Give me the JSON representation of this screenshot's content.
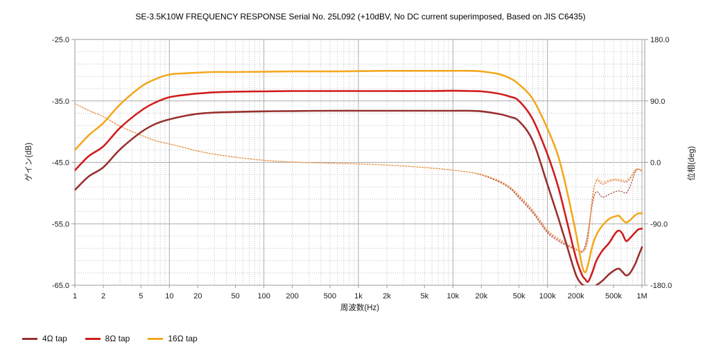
{
  "title": "SE-3.5K10W FREQUENCY RESPONSE Serial No. 25L092 (+10dBV,  No DC current superimposed,  Based on JIS C6435)",
  "axes": {
    "x": {
      "label": "周波数(Hz)",
      "scale": "log",
      "min": 1,
      "max": 1000000,
      "ticks": [
        {
          "t": "1",
          "v": 1
        },
        {
          "t": "2",
          "v": 2
        },
        {
          "t": "5",
          "v": 5
        },
        {
          "t": "10",
          "v": 10
        },
        {
          "t": "20",
          "v": 20
        },
        {
          "t": "50",
          "v": 50
        },
        {
          "t": "100",
          "v": 100
        },
        {
          "t": "200",
          "v": 200
        },
        {
          "t": "500",
          "v": 500
        },
        {
          "t": "1k",
          "v": 1000
        },
        {
          "t": "2k",
          "v": 2000
        },
        {
          "t": "5k",
          "v": 5000
        },
        {
          "t": "10k",
          "v": 10000
        },
        {
          "t": "20k",
          "v": 20000
        },
        {
          "t": "50k",
          "v": 50000
        },
        {
          "t": "100k",
          "v": 100000
        },
        {
          "t": "200k",
          "v": 200000
        },
        {
          "t": "500k",
          "v": 500000
        },
        {
          "t": "1M",
          "v": 1000000
        }
      ]
    },
    "y_left": {
      "label": "ゲイン(dB)",
      "min": -65,
      "max": -25,
      "minor_step": 2,
      "ticks": [
        {
          "t": "-25.0",
          "v": -25
        },
        {
          "t": "-35.0",
          "v": -35
        },
        {
          "t": "-45.0",
          "v": -45
        },
        {
          "t": "-55.0",
          "v": -55
        },
        {
          "t": "-65.0",
          "v": -65
        }
      ]
    },
    "y_right": {
      "label": "位相(deg)",
      "min": -180,
      "max": 180,
      "ticks": [
        {
          "t": "180.0",
          "v": 180
        },
        {
          "t": "90.0",
          "v": 90
        },
        {
          "t": "0.0",
          "v": 0
        },
        {
          "t": "-90.0",
          "v": -90
        },
        {
          "t": "-180.0",
          "v": -180
        }
      ]
    }
  },
  "legend": [
    {
      "label": "4Ω tap",
      "color": "#97312e"
    },
    {
      "label": "8Ω tap",
      "color": "#d01c1c"
    },
    {
      "label": "16Ω tap",
      "color": "#f3a81f"
    }
  ],
  "colors": {
    "grid_major": "#ababab",
    "grid_minor": "#c0c0c0",
    "border": "#9a9a9a",
    "text": "#1a1a1a"
  },
  "chart_data": {
    "type": "line",
    "title": "SE-3.5K10W FREQUENCY RESPONSE Serial No. 25L092",
    "xlabel": "周波数(Hz)",
    "ylabel_left": "ゲイン(dB)",
    "ylabel_right": "位相(deg)",
    "xscale": "log",
    "xlim": [
      1,
      1000000
    ],
    "ylim_left": [
      -65,
      -25
    ],
    "ylim_right": [
      -180,
      180
    ],
    "grid": true,
    "legend_position": "bottom-left",
    "x": [
      1,
      1.4,
      2,
      3,
      5,
      7,
      10,
      15,
      20,
      30,
      50,
      100,
      200,
      500,
      1000,
      2000,
      5000,
      10000,
      15000,
      20000,
      30000,
      40000,
      50000,
      70000,
      100000,
      130000,
      160000,
      200000,
      230000,
      250000,
      270000,
      300000,
      330000,
      380000,
      450000,
      520000,
      570000,
      620000,
      680000,
      750000,
      850000,
      920000,
      1000000
    ],
    "series": [
      {
        "name": "4Ω tap gain (dB)",
        "axis": "left",
        "style": "solid",
        "color": "#97312e",
        "width": 2.6,
        "values": [
          -49.5,
          -47.3,
          -45.8,
          -42.9,
          -40.1,
          -38.8,
          -38.0,
          -37.4,
          -37.1,
          -36.9,
          -36.8,
          -36.7,
          -36.65,
          -36.6,
          -36.6,
          -36.6,
          -36.6,
          -36.6,
          -36.6,
          -36.7,
          -37.1,
          -37.6,
          -38.3,
          -41.5,
          -48.6,
          -54.0,
          -58.5,
          -63.3,
          -64.8,
          -65.1,
          -65.3,
          -65.3,
          -65.0,
          -64.3,
          -63.2,
          -62.5,
          -62.3,
          -62.8,
          -63.4,
          -63.0,
          -61.5,
          -60.2,
          -58.8
        ]
      },
      {
        "name": "8Ω tap gain (dB)",
        "axis": "left",
        "style": "solid",
        "color": "#d01c1c",
        "width": 2.6,
        "values": [
          -46.3,
          -44.0,
          -42.4,
          -39.4,
          -36.6,
          -35.3,
          -34.4,
          -34.0,
          -33.8,
          -33.6,
          -33.5,
          -33.45,
          -33.4,
          -33.4,
          -33.4,
          -33.4,
          -33.4,
          -33.35,
          -33.4,
          -33.45,
          -33.8,
          -34.3,
          -35.0,
          -38.0,
          -43.7,
          -49.0,
          -54.5,
          -60.5,
          -63.2,
          -64.0,
          -64.4,
          -62.8,
          -61.0,
          -59.4,
          -58.1,
          -56.6,
          -56.1,
          -56.6,
          -57.8,
          -57.3,
          -56.4,
          -55.9,
          -55.8
        ]
      },
      {
        "name": "16Ω tap gain (dB)",
        "axis": "left",
        "style": "solid",
        "color": "#f3a81f",
        "width": 2.6,
        "values": [
          -43.0,
          -40.6,
          -38.6,
          -35.6,
          -32.7,
          -31.5,
          -30.7,
          -30.5,
          -30.4,
          -30.3,
          -30.3,
          -30.25,
          -30.2,
          -30.2,
          -30.15,
          -30.1,
          -30.1,
          -30.1,
          -30.1,
          -30.2,
          -30.6,
          -31.3,
          -32.3,
          -34.7,
          -39.5,
          -44.0,
          -49.5,
          -56.5,
          -61.5,
          -62.9,
          -61.5,
          -58.5,
          -56.8,
          -55.3,
          -54.2,
          -53.8,
          -53.7,
          -54.3,
          -54.8,
          -54.4,
          -53.6,
          -53.3,
          -53.3
        ]
      },
      {
        "name": "4Ω tap phase (deg)",
        "axis": "right",
        "style": "dotted",
        "color": "#a85148",
        "width": 1.2,
        "values": [
          86,
          76,
          67,
          53,
          40,
          32,
          27,
          21,
          16.5,
          12,
          7.5,
          3,
          0.5,
          -1.2,
          -2.3,
          -4,
          -7.5,
          -11.5,
          -14.5,
          -18.5,
          -28,
          -38,
          -52,
          -74,
          -103,
          -115,
          -122,
          -128,
          -130,
          -123,
          -100,
          -60,
          -43,
          -51,
          -47,
          -43,
          -42,
          -43,
          -45,
          -35,
          -14,
          -10,
          -13
        ]
      },
      {
        "name": "8Ω tap phase (deg)",
        "axis": "right",
        "style": "dotted",
        "color": "#e2725e",
        "width": 1.2,
        "values": [
          86,
          76,
          67,
          53,
          40,
          32,
          27,
          21,
          16.5,
          12,
          7.5,
          3,
          0.5,
          -1.2,
          -2.3,
          -4,
          -7.5,
          -11.5,
          -14.5,
          -18,
          -27,
          -37,
          -50,
          -72,
          -101,
          -113,
          -121,
          -128,
          -132,
          -126,
          -105,
          -50,
          -27,
          -32,
          -28,
          -26,
          -27,
          -28,
          -29,
          -24,
          -12,
          -10,
          -13
        ]
      },
      {
        "name": "16Ω tap phase (deg)",
        "axis": "right",
        "style": "dotted",
        "color": "#efa041",
        "width": 1.2,
        "values": [
          86,
          76,
          67,
          53,
          40,
          32,
          27,
          21,
          16.5,
          12,
          7.5,
          3,
          0.5,
          -1.2,
          -2.3,
          -4,
          -7.5,
          -11.5,
          -14.5,
          -17.5,
          -26,
          -36,
          -48,
          -70,
          -99,
          -111,
          -119,
          -127,
          -131,
          -128,
          -112,
          -55,
          -25,
          -29,
          -26,
          -24.5,
          -25,
          -26,
          -27,
          -22,
          -11,
          -9.5,
          -12
        ]
      }
    ]
  }
}
